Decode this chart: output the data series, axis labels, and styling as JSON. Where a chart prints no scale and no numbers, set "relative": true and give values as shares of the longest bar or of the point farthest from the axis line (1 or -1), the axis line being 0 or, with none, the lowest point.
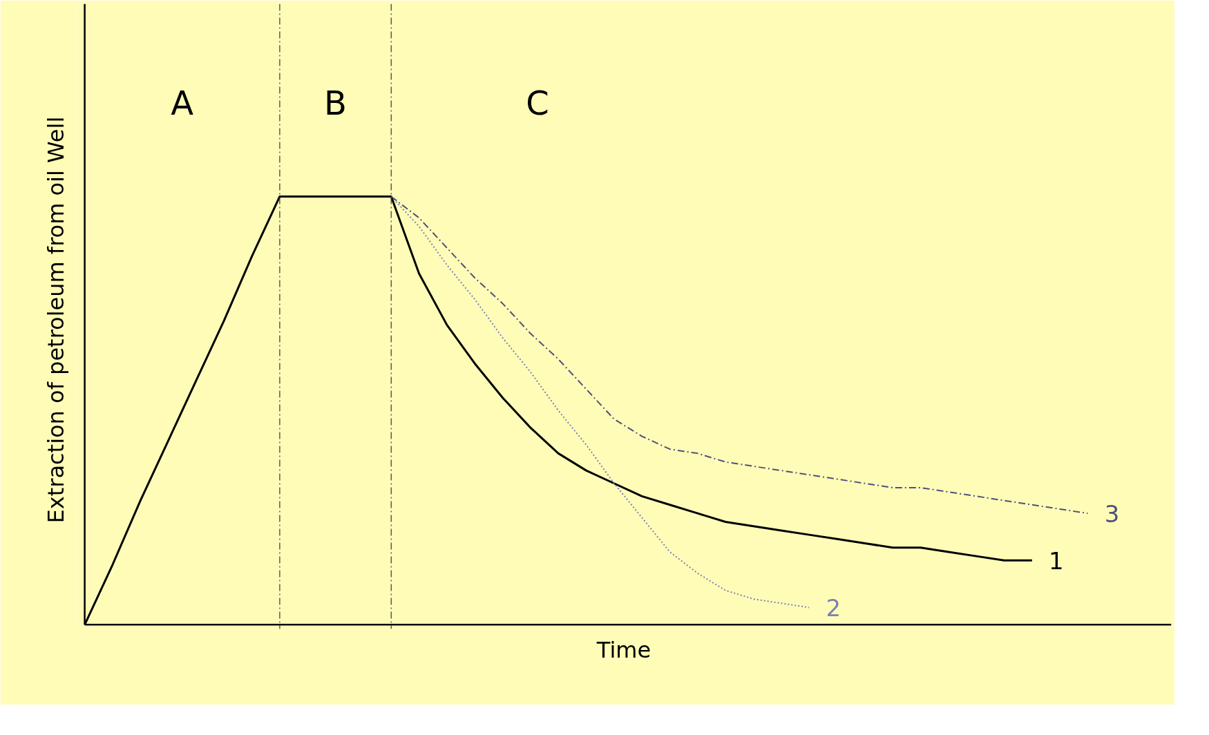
{
  "chart_data": {
    "type": "line",
    "relative": true,
    "xlabel": "Time",
    "ylabel": "Extraction of petroleum from oil  Well",
    "grid": false,
    "categories": [
      null,
      null,
      null,
      null,
      null,
      null,
      null,
      null,
      null,
      null,
      null,
      null,
      null,
      null,
      null,
      null,
      null,
      null,
      null,
      null,
      null,
      null,
      null,
      null,
      null,
      null,
      null,
      null,
      null,
      null,
      null,
      null,
      null,
      null,
      null,
      null,
      null
    ],
    "annotations": [
      "A",
      "B",
      "C"
    ],
    "series": [
      {
        "name": "1",
        "color": "#000000",
        "line_style": "solid",
        "values": [
          0,
          0.14,
          0.29,
          0.43,
          0.57,
          0.71,
          0.86,
          1,
          1,
          1,
          1,
          1,
          0.82,
          0.7,
          0.61,
          0.53,
          0.46,
          0.4,
          0.36,
          0.33,
          0.3,
          0.28,
          0.26,
          0.24,
          0.23,
          0.22,
          0.21,
          0.2,
          0.19,
          0.18,
          0.18,
          0.17,
          0.16,
          0.15,
          0.15,
          null,
          null
        ]
      },
      {
        "name": "2",
        "color": "#7a80b4",
        "line_style": "dotted",
        "values": [
          null,
          null,
          null,
          null,
          null,
          null,
          null,
          null,
          null,
          null,
          null,
          1,
          0.93,
          0.84,
          0.76,
          0.67,
          0.59,
          0.5,
          0.42,
          0.33,
          0.25,
          0.17,
          0.12,
          0.08,
          0.06,
          0.05,
          0.04,
          null,
          null,
          null,
          null,
          null,
          null,
          null,
          null,
          null,
          null
        ]
      },
      {
        "name": "3",
        "color": "#50507a",
        "line_style": "dashed",
        "values": [
          null,
          null,
          null,
          null,
          null,
          null,
          null,
          null,
          null,
          null,
          null,
          1,
          0.95,
          0.88,
          0.81,
          0.75,
          0.68,
          0.62,
          0.55,
          0.48,
          0.44,
          0.41,
          0.4,
          0.38,
          0.37,
          0.36,
          0.35,
          0.34,
          0.33,
          0.32,
          0.32,
          0.31,
          0.3,
          0.29,
          0.28,
          0.27,
          0.26
        ]
      }
    ]
  }
}
